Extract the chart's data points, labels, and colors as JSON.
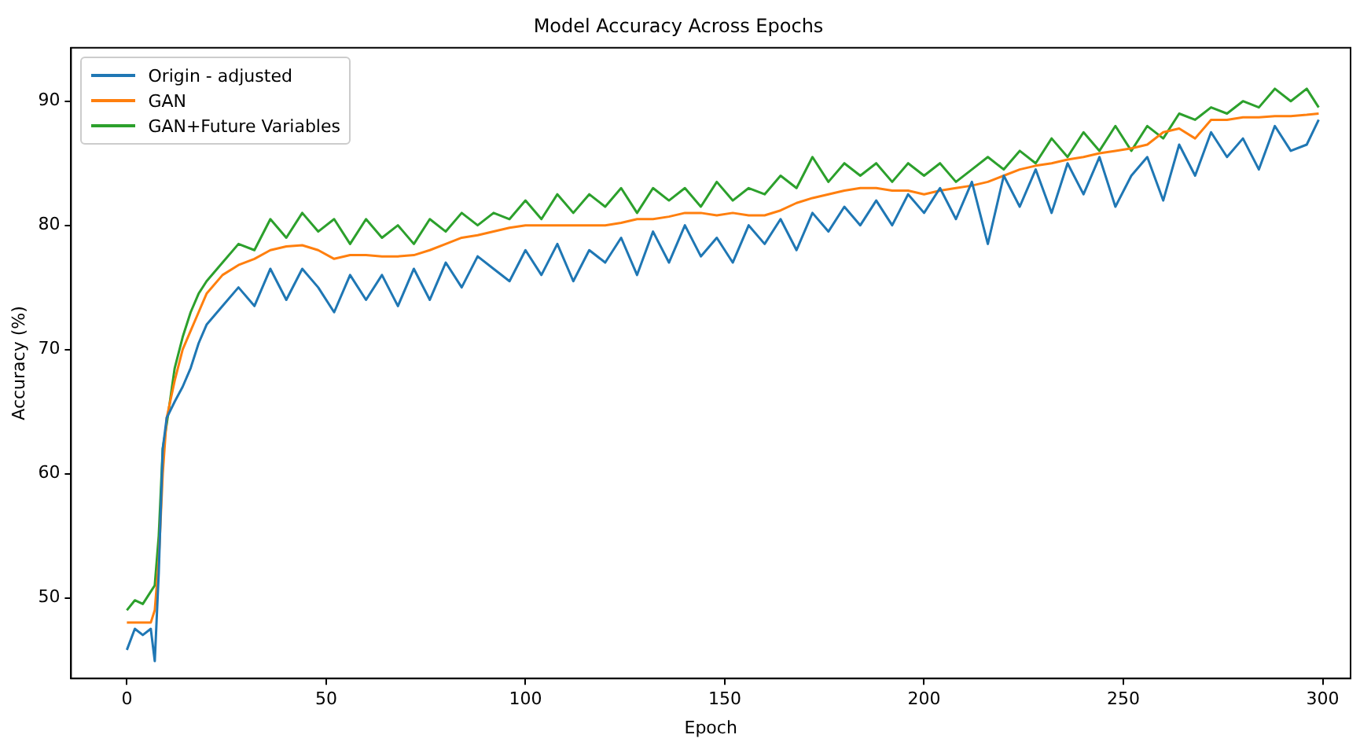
{
  "chart_data": {
    "type": "line",
    "title": "Model Accuracy Across Epochs",
    "xlabel": "Epoch",
    "ylabel": "Accuracy (%)",
    "x": [
      0,
      2,
      4,
      6,
      7,
      8,
      9,
      10,
      12,
      14,
      16,
      18,
      20,
      24,
      28,
      32,
      36,
      40,
      44,
      48,
      52,
      56,
      60,
      64,
      68,
      72,
      76,
      80,
      84,
      88,
      92,
      96,
      100,
      104,
      108,
      112,
      116,
      120,
      124,
      128,
      132,
      136,
      140,
      144,
      148,
      152,
      156,
      160,
      164,
      168,
      172,
      176,
      180,
      184,
      188,
      192,
      196,
      200,
      204,
      208,
      212,
      216,
      220,
      224,
      228,
      232,
      236,
      240,
      244,
      248,
      252,
      256,
      260,
      264,
      268,
      272,
      276,
      280,
      284,
      288,
      292,
      296,
      299
    ],
    "series": [
      {
        "name": "Origin - adjusted",
        "color": "#1f77b4",
        "values": [
          45.8,
          47.5,
          47,
          47.5,
          44.9,
          52,
          62,
          64.5,
          65.8,
          67,
          68.5,
          70.5,
          72,
          73.5,
          75,
          73.5,
          76.5,
          74,
          76.5,
          75,
          73,
          76,
          74,
          76,
          73.5,
          76.5,
          74,
          77,
          75,
          77.5,
          76.5,
          75.5,
          78,
          76,
          78.5,
          75.5,
          78,
          77,
          79,
          76,
          79.5,
          77,
          80,
          77.5,
          79,
          77,
          80,
          78.5,
          80.5,
          78,
          81,
          79.5,
          81.5,
          80,
          82,
          80,
          82.5,
          81,
          83,
          80.5,
          83.5,
          78.5,
          84,
          81.5,
          84.5,
          81,
          85,
          82.5,
          85.5,
          81.5,
          84,
          85.5,
          82,
          86.5,
          84,
          87.5,
          85.5,
          87,
          84.5,
          88,
          86,
          86.5,
          88.5
        ]
      },
      {
        "name": "GAN",
        "color": "#ff7f0e",
        "values": [
          48,
          48,
          48,
          48,
          49,
          53,
          60,
          64.5,
          67.5,
          70,
          71.5,
          73,
          74.5,
          76,
          76.8,
          77.3,
          78,
          78.3,
          78.4,
          78,
          77.3,
          77.6,
          77.6,
          77.5,
          77.5,
          77.6,
          78,
          78.5,
          79,
          79.2,
          79.5,
          79.8,
          80,
          80,
          80,
          80,
          80,
          80,
          80.2,
          80.5,
          80.5,
          80.7,
          81,
          81,
          80.8,
          81,
          80.8,
          80.8,
          81.2,
          81.8,
          82.2,
          82.5,
          82.8,
          83,
          83,
          82.8,
          82.8,
          82.5,
          82.8,
          83,
          83.2,
          83.5,
          84,
          84.5,
          84.8,
          85,
          85.3,
          85.5,
          85.8,
          86,
          86.2,
          86.5,
          87.5,
          87.8,
          87,
          88.5,
          88.5,
          88.7,
          88.7,
          88.8,
          88.8,
          88.9,
          89
        ]
      },
      {
        "name": "GAN+Future Variables",
        "color": "#2ca02c",
        "values": [
          49,
          49.8,
          49.5,
          50.5,
          51,
          55,
          62,
          64,
          68.5,
          71,
          73,
          74.5,
          75.5,
          77,
          78.5,
          78,
          80.5,
          79,
          81,
          79.5,
          80.5,
          78.5,
          80.5,
          79,
          80,
          78.5,
          80.5,
          79.5,
          81,
          80,
          81,
          80.5,
          82,
          80.5,
          82.5,
          81,
          82.5,
          81.5,
          83,
          81,
          83,
          82,
          83,
          81.5,
          83.5,
          82,
          83,
          82.5,
          84,
          83,
          85.5,
          83.5,
          85,
          84,
          85,
          83.5,
          85,
          84,
          85,
          83.5,
          84.5,
          85.5,
          84.5,
          86,
          85,
          87,
          85.5,
          87.5,
          86,
          88,
          86,
          88,
          87,
          89,
          88.5,
          89.5,
          89,
          90,
          89.5,
          91,
          90,
          91,
          89.5
        ]
      }
    ],
    "xlim": [
      -14,
      307
    ],
    "ylim": [
      43.5,
      94.3
    ],
    "xticks": [
      0,
      50,
      100,
      150,
      200,
      250,
      300
    ],
    "yticks": [
      50,
      60,
      70,
      80,
      90
    ],
    "grid": false,
    "legend": "top left",
    "marker": "none",
    "line_style": "solid"
  }
}
